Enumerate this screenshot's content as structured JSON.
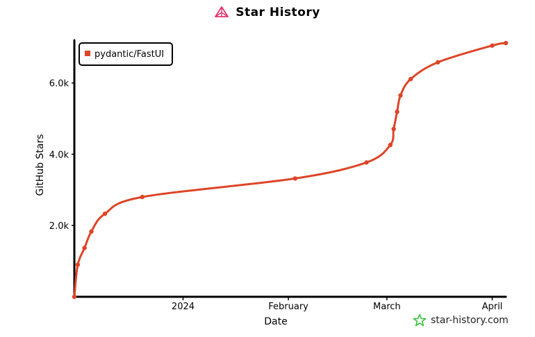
{
  "title": "Star History",
  "footer_text": "star-history.com",
  "colors": {
    "series": "#dd4528",
    "title_icon": "#e0336e",
    "footer_icon": "#36c13a"
  },
  "chart_data": {
    "type": "line",
    "title": "Star History",
    "xlabel": "Date",
    "ylabel": "GitHub Stars",
    "x_tick_labels": [
      "2024",
      "February",
      "March",
      "April"
    ],
    "x_tick_dates": [
      "2024-01-01",
      "2024-02-01",
      "2024-03-01",
      "2024-04-01"
    ],
    "y_ticks": [
      2000,
      4000,
      6000
    ],
    "y_tick_labels": [
      "2.0k",
      "4.0k",
      "6.0k"
    ],
    "xlim": [
      "2023-11-30",
      "2024-04-05"
    ],
    "ylim": [
      0,
      7200
    ],
    "legend": {
      "position": "top-left",
      "entries": [
        "pydantic/FastUI"
      ]
    },
    "grid": false,
    "series": [
      {
        "name": "pydantic/FastUI",
        "points": [
          {
            "x": "2023-11-30",
            "y": 0
          },
          {
            "x": "2023-12-01",
            "y": 900
          },
          {
            "x": "2023-12-03",
            "y": 1370
          },
          {
            "x": "2023-12-05",
            "y": 1830
          },
          {
            "x": "2023-12-09",
            "y": 2330
          },
          {
            "x": "2023-12-20",
            "y": 2800
          },
          {
            "x": "2024-02-03",
            "y": 3320
          },
          {
            "x": "2024-02-24",
            "y": 3770
          },
          {
            "x": "2024-03-02",
            "y": 4260
          },
          {
            "x": "2024-03-03",
            "y": 4710
          },
          {
            "x": "2024-03-04",
            "y": 5190
          },
          {
            "x": "2024-03-05",
            "y": 5650
          },
          {
            "x": "2024-03-08",
            "y": 6110
          },
          {
            "x": "2024-03-16",
            "y": 6580
          },
          {
            "x": "2024-04-01",
            "y": 7050
          },
          {
            "x": "2024-04-05",
            "y": 7120
          }
        ]
      }
    ]
  }
}
